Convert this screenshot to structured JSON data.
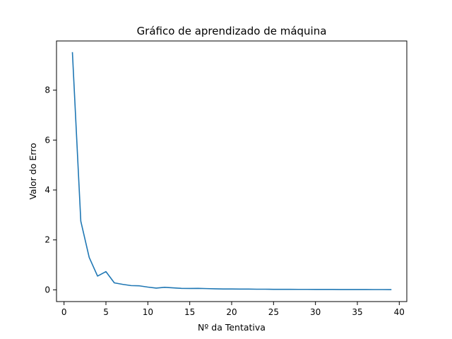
{
  "chart_data": {
    "type": "line",
    "title": "Gráfico de aprendizado de máquina",
    "xlabel": "Nº da Tentativa",
    "ylabel": "Valor do Erro",
    "xlim": [
      -0.9,
      40.9
    ],
    "ylim": [
      -0.47,
      9.97
    ],
    "xticks": [
      0,
      5,
      10,
      15,
      20,
      25,
      30,
      35,
      40
    ],
    "yticks": [
      0,
      2,
      4,
      6,
      8
    ],
    "grid": false,
    "legend": "none",
    "series": [
      {
        "color": "#1f77b4",
        "x": [
          1,
          2,
          3,
          4,
          5,
          6,
          7,
          8,
          9,
          10,
          11,
          12,
          13,
          14,
          15,
          16,
          17,
          18,
          19,
          20,
          21,
          22,
          23,
          24,
          25,
          26,
          27,
          28,
          29,
          30,
          31,
          32,
          33,
          34,
          35,
          36,
          37,
          38,
          39
        ],
        "y": [
          9.5,
          2.75,
          1.3,
          0.55,
          0.73,
          0.28,
          0.22,
          0.17,
          0.16,
          0.11,
          0.07,
          0.1,
          0.08,
          0.06,
          0.055,
          0.06,
          0.05,
          0.04,
          0.035,
          0.035,
          0.03,
          0.03,
          0.025,
          0.025,
          0.02,
          0.02,
          0.02,
          0.018,
          0.018,
          0.015,
          0.015,
          0.015,
          0.013,
          0.013,
          0.012,
          0.012,
          0.011,
          0.011,
          0.01
        ]
      }
    ]
  }
}
